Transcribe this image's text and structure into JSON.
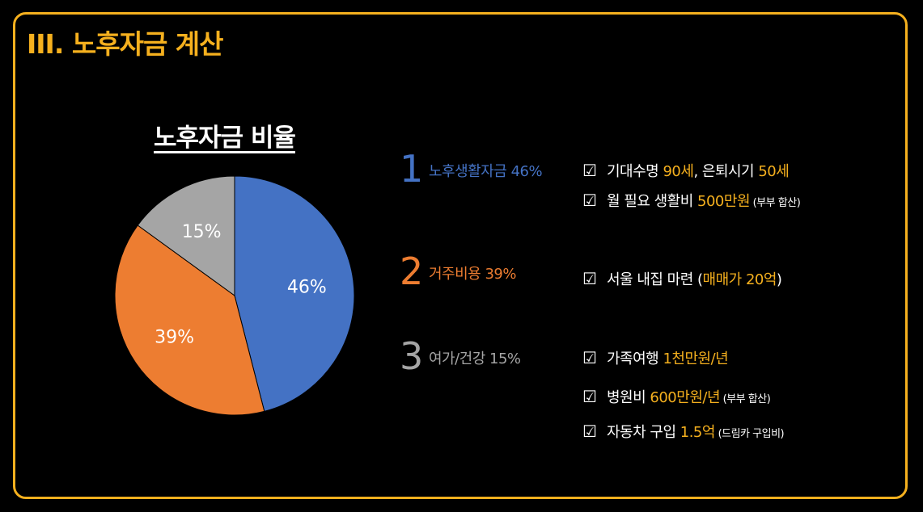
{
  "section_title": "III. 노후자금 계산",
  "chart_data": {
    "type": "pie",
    "title": "노후자금 비율",
    "slices": [
      {
        "label": "46%",
        "value": 46,
        "color": "#4472c4"
      },
      {
        "label": "39%",
        "value": 39,
        "color": "#ed7d31"
      },
      {
        "label": "15%",
        "value": 15,
        "color": "#a5a5a5"
      }
    ]
  },
  "categories": [
    {
      "number": "1",
      "label": "노후생활자금 46%",
      "color": "#4472c4"
    },
    {
      "number": "2",
      "label": "거주비용 39%",
      "color": "#ed7d31"
    },
    {
      "number": "3",
      "label": "여가/건강 15%",
      "color": "#a5a5a5"
    }
  ],
  "checkbox_glyph": "☑",
  "details": {
    "retirement_1": {
      "a": "기대수명 ",
      "b": "90세",
      "c": ", 은퇴시기 ",
      "d": "50세"
    },
    "retirement_2": {
      "a": "월 필요 생활비 ",
      "b": "500만원",
      "c": " (부부 합산)"
    },
    "housing_1": {
      "a": "서울 내집 마련 (",
      "b": "매매가 20억",
      "c": ")"
    },
    "leisure_1": {
      "a": "가족여행 ",
      "b": "1천만원/년"
    },
    "leisure_2": {
      "a": "병원비 ",
      "b": "600만원/년",
      "c": " (부부 합산)"
    },
    "leisure_3": {
      "a": "자동차 구입 ",
      "b": "1.5억",
      "c": " (드림카 구입비)"
    }
  },
  "colors": {
    "accent": "#f5b01e",
    "background": "#000000"
  }
}
